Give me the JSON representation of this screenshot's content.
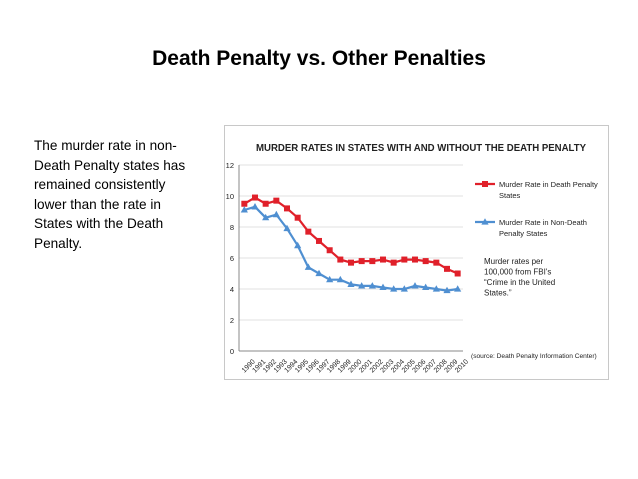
{
  "slide": {
    "title": "Death Penalty vs. Other Penalties",
    "body_text": "The murder rate in non-Death Penalty states has remained consistently lower than the rate in States with the Death Penalty."
  },
  "chart_data": {
    "type": "line",
    "title": "MURDER RATES IN STATES WITH AND WITHOUT THE DEATH PENALTY",
    "xlabel": "",
    "ylabel": "",
    "x": [
      "1990",
      "1991",
      "1992",
      "1993",
      "1994",
      "1995",
      "1996",
      "1997",
      "1998",
      "1999",
      "2000",
      "2001",
      "2002",
      "2003",
      "2004",
      "2005",
      "2006",
      "2007",
      "2008",
      "2009",
      "2010"
    ],
    "ylim": [
      0,
      12
    ],
    "yticks": [
      "0",
      "2",
      "4",
      "6",
      "8",
      "10",
      "12"
    ],
    "grid": true,
    "legend_position": "right",
    "series": [
      {
        "name": "Murder Rate in Death Penalty States",
        "color": "#e0202a",
        "marker": "square",
        "values": [
          9.5,
          9.9,
          9.5,
          9.7,
          9.2,
          8.6,
          7.7,
          7.1,
          6.5,
          5.9,
          5.7,
          5.8,
          5.8,
          5.9,
          5.7,
          5.9,
          5.9,
          5.8,
          5.7,
          5.3,
          5.0
        ]
      },
      {
        "name": "Murder Rate in Non-Death Penalty States",
        "color": "#4f8fd1",
        "marker": "triangle",
        "values": [
          9.1,
          9.3,
          8.6,
          8.8,
          7.9,
          6.8,
          5.4,
          5.0,
          4.6,
          4.6,
          4.3,
          4.2,
          4.2,
          4.1,
          4.0,
          4.0,
          4.2,
          4.1,
          4.0,
          3.9,
          4.0
        ]
      }
    ],
    "annotations": [
      "Murder rates per 100,000 from FBI's “Crime in the United States.”",
      "(source: Death Penalty Information Center)"
    ]
  }
}
